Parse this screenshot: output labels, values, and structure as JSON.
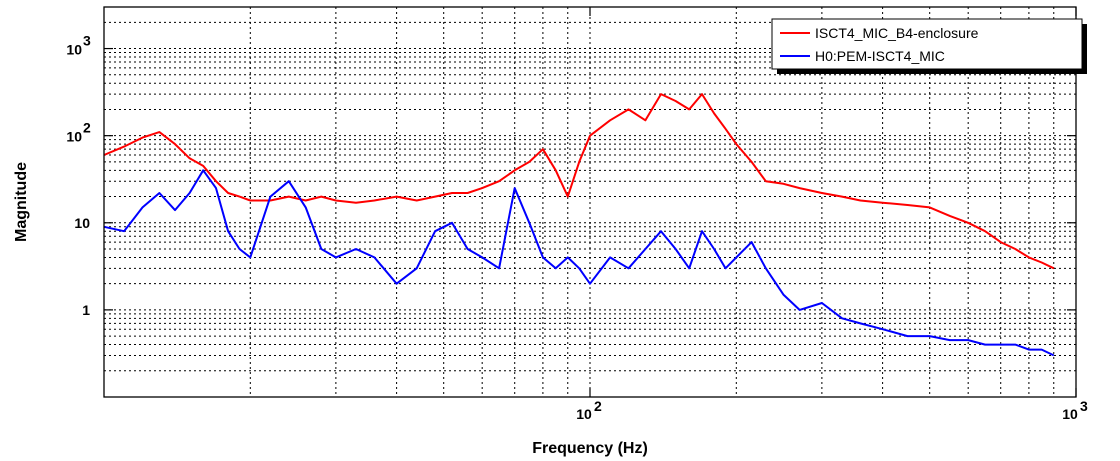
{
  "chart_data": {
    "type": "line",
    "xlabel": "Frequency (Hz)",
    "ylabel": "Magnitude",
    "x_scale": "log",
    "y_scale": "log",
    "xlim": [
      10,
      1000
    ],
    "ylim": [
      0.1,
      3000
    ],
    "grid": true,
    "legend_position": "top-right",
    "x_ticks": [
      {
        "value": 100,
        "base": "10",
        "exp": "2"
      },
      {
        "value": 1000,
        "base": "10",
        "exp": "3"
      }
    ],
    "y_ticks": [
      {
        "value": 1,
        "label": "1"
      },
      {
        "value": 10,
        "label": "10"
      },
      {
        "value": 100,
        "base": "10",
        "exp": "2"
      },
      {
        "value": 1000,
        "base": "10",
        "exp": "3"
      }
    ],
    "series": [
      {
        "name": "ISCT4_MIC_B4-enclosure",
        "color": "#ff0000",
        "x": [
          10,
          11,
          12,
          13,
          14,
          15,
          16,
          17,
          18,
          19,
          20,
          22,
          24,
          26,
          28,
          30,
          33,
          36,
          40,
          44,
          48,
          52,
          56,
          60,
          65,
          70,
          75,
          80,
          85,
          90,
          95,
          100,
          110,
          120,
          130,
          140,
          150,
          160,
          170,
          180,
          190,
          200,
          215,
          230,
          250,
          270,
          300,
          330,
          360,
          400,
          450,
          500,
          550,
          600,
          650,
          700,
          750,
          800,
          850,
          900
        ],
        "y": [
          60,
          75,
          95,
          110,
          80,
          55,
          45,
          30,
          22,
          20,
          18,
          18,
          20,
          18,
          20,
          18,
          17,
          18,
          20,
          18,
          20,
          22,
          22,
          25,
          30,
          40,
          50,
          70,
          40,
          20,
          50,
          100,
          150,
          200,
          150,
          300,
          250,
          200,
          300,
          180,
          120,
          80,
          50,
          30,
          28,
          25,
          22,
          20,
          18,
          17,
          16,
          15,
          12,
          10,
          8,
          6,
          5,
          4,
          3.5,
          3
        ]
      },
      {
        "name": "H0:PEM-ISCT4_MIC",
        "color": "#0000ff",
        "x": [
          10,
          11,
          12,
          13,
          14,
          15,
          16,
          17,
          18,
          19,
          20,
          22,
          24,
          26,
          28,
          30,
          33,
          36,
          40,
          44,
          48,
          52,
          56,
          60,
          65,
          70,
          75,
          80,
          85,
          90,
          95,
          100,
          110,
          120,
          130,
          140,
          150,
          160,
          170,
          180,
          190,
          200,
          215,
          230,
          250,
          270,
          300,
          330,
          360,
          400,
          450,
          500,
          550,
          600,
          650,
          700,
          750,
          800,
          850,
          900
        ],
        "y": [
          9,
          8,
          15,
          22,
          14,
          22,
          40,
          25,
          8,
          5,
          4,
          20,
          30,
          15,
          5,
          4,
          5,
          4,
          2,
          3,
          8,
          10,
          5,
          4,
          3,
          25,
          10,
          4,
          3,
          4,
          3,
          2,
          4,
          3,
          5,
          8,
          5,
          3,
          8,
          5,
          3,
          4,
          6,
          3,
          1.5,
          1,
          1.2,
          0.8,
          0.7,
          0.6,
          0.5,
          0.5,
          0.45,
          0.45,
          0.4,
          0.4,
          0.4,
          0.35,
          0.35,
          0.3
        ]
      }
    ]
  }
}
